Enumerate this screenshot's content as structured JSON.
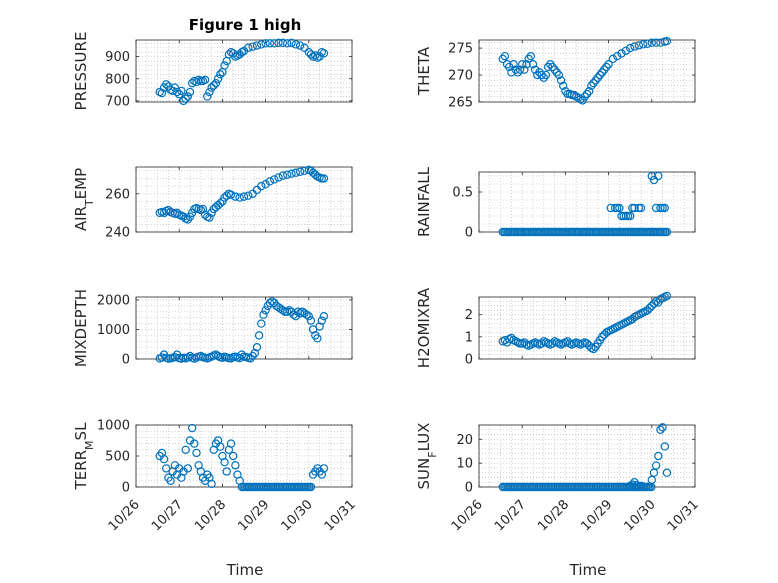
{
  "figure": {
    "title": "Figure 1 high",
    "xlabel": "Time"
  },
  "colors": {
    "marker": "#0072bd",
    "axis": "#262626",
    "grid": "#b4b4b4",
    "background": "#ffffff"
  },
  "chart_data": [
    {
      "type": "scatter",
      "title": "Figure 1 high",
      "ylabel": "PRESSURE",
      "ylabel_parts": [
        {
          "text": "PRESSURE",
          "sub": false
        }
      ],
      "ylim": [
        695,
        975
      ],
      "yticks": [
        700,
        800,
        900
      ],
      "xlim": [
        "10/26",
        "10/31"
      ],
      "xticks": [
        "10/26",
        "10/27",
        "10/28",
        "10/29",
        "10/30",
        "10/31"
      ],
      "grid": "on (major + minor dotted)",
      "x_days": [
        0.55,
        0.6,
        0.65,
        0.7,
        0.75,
        0.8,
        0.85,
        0.9,
        0.95,
        1.0,
        1.05,
        1.1,
        1.15,
        1.2,
        1.25,
        1.3,
        1.35,
        1.4,
        1.45,
        1.5,
        1.55,
        1.6,
        1.65,
        1.7,
        1.75,
        1.8,
        1.85,
        1.9,
        1.95,
        2.0,
        2.05,
        2.1,
        2.15,
        2.2,
        2.25,
        2.3,
        2.35,
        2.4,
        2.45,
        2.5,
        2.6,
        2.7,
        2.8,
        2.9,
        3.0,
        3.1,
        3.2,
        3.3,
        3.4,
        3.5,
        3.6,
        3.7,
        3.8,
        3.9,
        4.0,
        4.05,
        4.1,
        4.15,
        4.2,
        4.25,
        4.3,
        4.35
      ],
      "values": [
        740,
        735,
        760,
        775,
        765,
        750,
        745,
        760,
        740,
        730,
        745,
        700,
        710,
        720,
        740,
        780,
        790,
        785,
        795,
        790,
        790,
        795,
        720,
        740,
        760,
        770,
        780,
        800,
        820,
        830,
        860,
        880,
        910,
        920,
        915,
        900,
        905,
        910,
        920,
        925,
        940,
        945,
        950,
        955,
        960,
        960,
        960,
        962,
        962,
        960,
        962,
        955,
        950,
        940,
        920,
        910,
        900,
        905,
        895,
        900,
        920,
        915
      ]
    },
    {
      "type": "scatter",
      "ylabel": "THETA",
      "ylabel_parts": [
        {
          "text": "THETA",
          "sub": false
        }
      ],
      "ylim": [
        265,
        276.5
      ],
      "yticks": [
        265,
        270,
        275
      ],
      "xlim": [
        "10/26",
        "10/31"
      ],
      "xticks": [
        "10/26",
        "10/27",
        "10/28",
        "10/29",
        "10/30",
        "10/31"
      ],
      "grid": "on (major + minor dotted)",
      "x_days": [
        0.55,
        0.6,
        0.65,
        0.7,
        0.75,
        0.8,
        0.85,
        0.9,
        0.95,
        1.0,
        1.05,
        1.1,
        1.15,
        1.2,
        1.25,
        1.3,
        1.35,
        1.4,
        1.45,
        1.5,
        1.55,
        1.6,
        1.65,
        1.7,
        1.75,
        1.8,
        1.85,
        1.9,
        1.95,
        2.0,
        2.05,
        2.1,
        2.15,
        2.2,
        2.25,
        2.3,
        2.35,
        2.4,
        2.45,
        2.5,
        2.55,
        2.6,
        2.65,
        2.7,
        2.75,
        2.8,
        2.85,
        2.9,
        2.95,
        3.0,
        3.1,
        3.2,
        3.3,
        3.4,
        3.5,
        3.6,
        3.7,
        3.8,
        3.9,
        4.0,
        4.1,
        4.2,
        4.3,
        4.35
      ],
      "values": [
        273,
        273.5,
        272,
        271.5,
        270.5,
        272,
        271,
        270.5,
        271,
        272,
        271,
        272,
        273,
        273.5,
        272,
        271,
        270,
        270.5,
        270,
        269.5,
        270,
        271.5,
        272,
        271.5,
        271,
        270.5,
        270,
        269,
        268,
        267,
        266.5,
        266.5,
        266.3,
        266.3,
        266,
        265.8,
        265.5,
        265.3,
        266,
        266.5,
        267,
        268,
        268.5,
        269,
        269.5,
        270,
        270.5,
        271,
        271.5,
        272,
        273,
        273.5,
        274,
        274.5,
        275,
        275.3,
        275.5,
        275.7,
        275.8,
        276,
        276,
        276,
        276.2,
        276.3
      ]
    },
    {
      "type": "scatter",
      "ylabel": "AIR_TEMP",
      "ylabel_parts": [
        {
          "text": "AIR",
          "sub": false
        },
        {
          "text": "T",
          "sub": true
        },
        {
          "text": "EMP",
          "sub": false
        }
      ],
      "ylim": [
        240,
        274
      ],
      "yticks": [
        240,
        260
      ],
      "xlim": [
        "10/26",
        "10/31"
      ],
      "xticks": [
        "10/26",
        "10/27",
        "10/28",
        "10/29",
        "10/30",
        "10/31"
      ],
      "grid": "on (major + minor dotted)",
      "x_days": [
        0.55,
        0.6,
        0.65,
        0.7,
        0.75,
        0.8,
        0.85,
        0.9,
        0.95,
        1.0,
        1.05,
        1.1,
        1.15,
        1.2,
        1.25,
        1.3,
        1.35,
        1.4,
        1.45,
        1.5,
        1.55,
        1.6,
        1.65,
        1.7,
        1.75,
        1.8,
        1.85,
        1.9,
        1.95,
        2.0,
        2.05,
        2.1,
        2.15,
        2.2,
        2.3,
        2.4,
        2.5,
        2.6,
        2.7,
        2.8,
        2.9,
        3.0,
        3.1,
        3.2,
        3.3,
        3.4,
        3.5,
        3.6,
        3.7,
        3.8,
        3.9,
        4.0,
        4.05,
        4.1,
        4.15,
        4.2,
        4.25,
        4.3,
        4.35
      ],
      "values": [
        250,
        250.5,
        250,
        251,
        251.5,
        250.5,
        250,
        249.5,
        250,
        249,
        248.5,
        248,
        247,
        246.5,
        248,
        250,
        252,
        252.5,
        252,
        251.5,
        252,
        249,
        248,
        247.5,
        250,
        252,
        253,
        254,
        255,
        256,
        258,
        259,
        260,
        259.5,
        258.5,
        258,
        258.5,
        259,
        260,
        262,
        264,
        265,
        266.5,
        267.5,
        268.5,
        269.5,
        270,
        270.5,
        271,
        271.5,
        272,
        272.5,
        272,
        271,
        270,
        269,
        268.5,
        268,
        268
      ]
    },
    {
      "type": "scatter",
      "ylabel": "RAINFALL",
      "ylabel_parts": [
        {
          "text": "RAINFALL",
          "sub": false
        }
      ],
      "ylim": [
        0,
        0.75
      ],
      "yticks": [
        0,
        0.5
      ],
      "ytick_labels": [
        "0",
        "0.5"
      ],
      "xlim": [
        "10/26",
        "10/31"
      ],
      "xticks": [
        "10/26",
        "10/27",
        "10/28",
        "10/29",
        "10/30",
        "10/31"
      ],
      "grid": "on (major + minor dotted)",
      "zero_range_days": [
        0.55,
        4.35
      ],
      "x_days": [
        3.05,
        3.15,
        3.2,
        3.25,
        3.3,
        3.35,
        3.4,
        3.45,
        3.5,
        3.55,
        3.6,
        3.7,
        3.75,
        4.0,
        4.05,
        4.1,
        4.15,
        4.2,
        4.25,
        4.3
      ],
      "values": [
        0.3,
        0.3,
        0.3,
        0.3,
        0.2,
        0.2,
        0.2,
        0.2,
        0.2,
        0.3,
        0.3,
        0.3,
        0.3,
        0.7,
        0.65,
        0.3,
        0.7,
        0.3,
        0.3,
        0.3
      ]
    },
    {
      "type": "scatter",
      "ylabel": "MIXDEPTH",
      "ylabel_parts": [
        {
          "text": "MIXDEPTH",
          "sub": false
        }
      ],
      "ylim": [
        0,
        2100
      ],
      "yticks": [
        0,
        1000,
        2000
      ],
      "xlim": [
        "10/26",
        "10/31"
      ],
      "xticks": [
        "10/26",
        "10/27",
        "10/28",
        "10/29",
        "10/30",
        "10/31"
      ],
      "grid": "on (major + minor dotted)",
      "x_days": [
        0.55,
        0.6,
        0.65,
        0.7,
        0.75,
        0.8,
        0.85,
        0.9,
        0.95,
        1.0,
        1.05,
        1.1,
        1.15,
        1.2,
        1.25,
        1.3,
        1.35,
        1.4,
        1.45,
        1.5,
        1.55,
        1.6,
        1.65,
        1.7,
        1.75,
        1.8,
        1.85,
        1.9,
        1.95,
        2.0,
        2.05,
        2.1,
        2.15,
        2.2,
        2.25,
        2.3,
        2.35,
        2.4,
        2.45,
        2.5,
        2.55,
        2.6,
        2.65,
        2.7,
        2.75,
        2.8,
        2.85,
        2.9,
        2.95,
        3.0,
        3.05,
        3.1,
        3.15,
        3.2,
        3.25,
        3.3,
        3.35,
        3.4,
        3.45,
        3.5,
        3.55,
        3.6,
        3.65,
        3.7,
        3.75,
        3.8,
        3.85,
        3.9,
        3.95,
        4.0,
        4.05,
        4.1,
        4.15,
        4.2,
        4.25,
        4.3,
        4.35
      ],
      "values": [
        20,
        50,
        150,
        40,
        10,
        20,
        40,
        60,
        150,
        30,
        10,
        40,
        20,
        50,
        100,
        40,
        10,
        50,
        80,
        100,
        60,
        40,
        20,
        50,
        80,
        120,
        150,
        100,
        60,
        40,
        80,
        50,
        30,
        20,
        60,
        80,
        50,
        30,
        150,
        80,
        60,
        40,
        20,
        100,
        200,
        400,
        800,
        1200,
        1500,
        1650,
        1800,
        1900,
        1950,
        1900,
        1800,
        1750,
        1700,
        1650,
        1600,
        1600,
        1650,
        1600,
        1500,
        1450,
        1600,
        1550,
        1600,
        1550,
        1500,
        1450,
        1300,
        1000,
        800,
        700,
        1100,
        1300,
        1450
      ]
    },
    {
      "type": "scatter",
      "ylabel": "H2OMIXRA",
      "ylabel_parts": [
        {
          "text": "H2OMIXRA",
          "sub": false
        }
      ],
      "ylim": [
        0,
        2.8
      ],
      "yticks": [
        0,
        1,
        2
      ],
      "xlim": [
        "10/26",
        "10/31"
      ],
      "xticks": [
        "10/26",
        "10/27",
        "10/28",
        "10/29",
        "10/30",
        "10/31"
      ],
      "grid": "on (major + minor dotted)",
      "x_days": [
        0.55,
        0.6,
        0.65,
        0.7,
        0.75,
        0.8,
        0.85,
        0.9,
        0.95,
        1.0,
        1.05,
        1.1,
        1.15,
        1.2,
        1.25,
        1.3,
        1.35,
        1.4,
        1.45,
        1.5,
        1.55,
        1.6,
        1.65,
        1.7,
        1.75,
        1.8,
        1.85,
        1.9,
        1.95,
        2.0,
        2.05,
        2.1,
        2.15,
        2.2,
        2.25,
        2.3,
        2.35,
        2.4,
        2.45,
        2.5,
        2.55,
        2.6,
        2.65,
        2.7,
        2.75,
        2.8,
        2.85,
        2.9,
        2.95,
        3.0,
        3.05,
        3.1,
        3.15,
        3.2,
        3.25,
        3.3,
        3.35,
        3.4,
        3.45,
        3.5,
        3.55,
        3.6,
        3.65,
        3.7,
        3.75,
        3.8,
        3.85,
        3.9,
        3.95,
        4.0,
        4.05,
        4.1,
        4.15,
        4.2,
        4.25,
        4.3,
        4.35
      ],
      "values": [
        0.8,
        0.85,
        0.75,
        0.9,
        0.95,
        0.85,
        0.8,
        0.75,
        0.7,
        0.7,
        0.75,
        0.65,
        0.6,
        0.65,
        0.7,
        0.75,
        0.7,
        0.65,
        0.7,
        0.8,
        0.75,
        0.7,
        0.65,
        0.7,
        0.8,
        0.75,
        0.7,
        0.65,
        0.7,
        0.75,
        0.8,
        0.7,
        0.65,
        0.7,
        0.75,
        0.7,
        0.65,
        0.7,
        0.75,
        0.7,
        0.6,
        0.5,
        0.45,
        0.55,
        0.7,
        0.85,
        1.0,
        1.1,
        1.2,
        1.25,
        1.3,
        1.35,
        1.4,
        1.45,
        1.5,
        1.55,
        1.6,
        1.65,
        1.7,
        1.75,
        1.8,
        1.9,
        1.95,
        2.0,
        2.05,
        2.1,
        2.15,
        2.2,
        2.3,
        2.4,
        2.5,
        2.6,
        2.55,
        2.7,
        2.75,
        2.8,
        2.85
      ]
    },
    {
      "type": "scatter",
      "ylabel": "TERR_MSL",
      "ylabel_parts": [
        {
          "text": "TERR",
          "sub": false
        },
        {
          "text": "M",
          "sub": true
        },
        {
          "text": "SL",
          "sub": false
        }
      ],
      "ylim": [
        0,
        1000
      ],
      "yticks": [
        0,
        500,
        1000
      ],
      "xlim": [
        "10/26",
        "10/31"
      ],
      "xticks": [
        "10/26",
        "10/27",
        "10/28",
        "10/29",
        "10/30",
        "10/31"
      ],
      "grid": "on (major + minor dotted)",
      "zero_range_days": [
        2.45,
        4.05
      ],
      "x_days": [
        0.55,
        0.6,
        0.65,
        0.7,
        0.75,
        0.8,
        0.85,
        0.9,
        0.95,
        1.0,
        1.05,
        1.1,
        1.15,
        1.2,
        1.25,
        1.3,
        1.35,
        1.4,
        1.45,
        1.5,
        1.55,
        1.6,
        1.65,
        1.7,
        1.75,
        1.8,
        1.85,
        1.9,
        1.95,
        2.0,
        2.05,
        2.1,
        2.15,
        2.2,
        2.25,
        2.3,
        2.35,
        2.4,
        4.1,
        4.15,
        4.2,
        4.25,
        4.3,
        4.35
      ],
      "values": [
        500,
        550,
        450,
        300,
        150,
        100,
        250,
        350,
        200,
        300,
        150,
        250,
        600,
        300,
        750,
        950,
        700,
        550,
        350,
        250,
        150,
        100,
        200,
        150,
        50,
        600,
        700,
        750,
        650,
        500,
        400,
        250,
        600,
        700,
        500,
        350,
        200,
        100,
        200,
        250,
        300,
        250,
        200,
        300
      ]
    },
    {
      "type": "scatter",
      "ylabel": "SUN_FLUX",
      "ylabel_parts": [
        {
          "text": "SUN",
          "sub": false
        },
        {
          "text": "F",
          "sub": true
        },
        {
          "text": "LUX",
          "sub": false
        }
      ],
      "ylim": [
        0,
        26
      ],
      "yticks": [
        0,
        10,
        20
      ],
      "xlim": [
        "10/26",
        "10/31"
      ],
      "xticks": [
        "10/26",
        "10/27",
        "10/28",
        "10/29",
        "10/30",
        "10/31"
      ],
      "grid": "on (major + minor dotted)",
      "zero_range_days": [
        0.55,
        4.0
      ],
      "x_days": [
        3.5,
        3.55,
        3.6,
        3.65,
        3.7,
        3.75,
        3.8,
        4.0,
        4.05,
        4.1,
        4.15,
        4.2,
        4.25,
        4.3,
        4.35
      ],
      "values": [
        0.5,
        1,
        2,
        0.8,
        0.3,
        0.5,
        0.2,
        3,
        6,
        9,
        13,
        24,
        25,
        17,
        6
      ]
    }
  ]
}
